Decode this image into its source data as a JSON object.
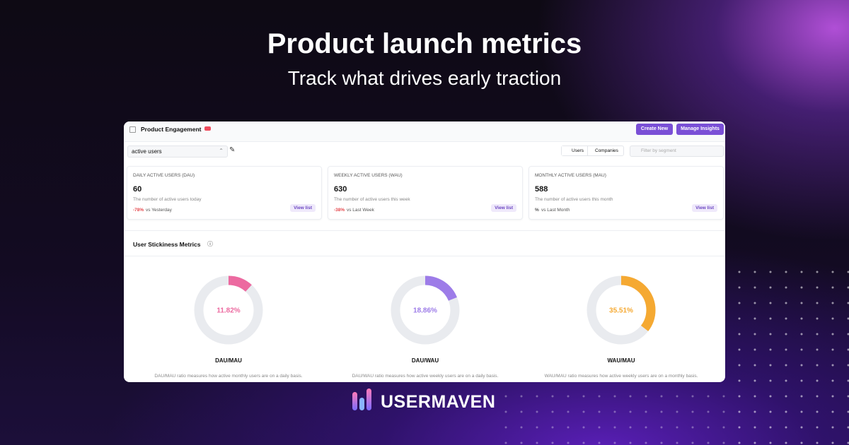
{
  "header": {
    "title": "Product launch metrics",
    "subtitle": "Track what drives early traction"
  },
  "app": {
    "title": "Product Engagement",
    "buttons": [
      "Create New",
      "Manage Insights"
    ],
    "selector": "active users",
    "toggle": [
      "Users",
      "Companies"
    ],
    "filter_placeholder": "Filter by segment",
    "cards": [
      {
        "label": "DAILY ACTIVE USERS (DAU)",
        "value": "60",
        "description": "The number of active users today",
        "change": "-78%",
        "comparison": "vs Yesterday",
        "link": "View list"
      },
      {
        "label": "WEEKLY ACTIVE USERS (WAU)",
        "value": "630",
        "description": "The number of active users this week",
        "change": "-38%",
        "comparison": "vs Last Week",
        "link": "View list"
      },
      {
        "label": "MONTHLY ACTIVE USERS (MAU)",
        "value": "588",
        "description": "The number of active users this month",
        "change": "%",
        "comparison": "vs Last Month",
        "link": "View list"
      }
    ],
    "section_title": "User Stickiness Metrics",
    "donuts": [
      {
        "value": 11.82,
        "value_label": "11.82%",
        "color": "#ec6aa0",
        "name": "DAU/MAU",
        "description": "DAU/MAU ratio measures how active monthly users are on a daily basis."
      },
      {
        "value": 18.86,
        "value_label": "18.86%",
        "color": "#9d7ce8",
        "name": "DAU/WAU",
        "description": "DAU/WAU ratio measures how active weekly users are on a daily basis."
      },
      {
        "value": 35.51,
        "value_label": "35.51%",
        "color": "#f5a932",
        "name": "WAU/MAU",
        "description": "WAU/MAU ratio measures how active weekly users are on a monthly basis."
      }
    ]
  },
  "logo": "USERMAVEN"
}
